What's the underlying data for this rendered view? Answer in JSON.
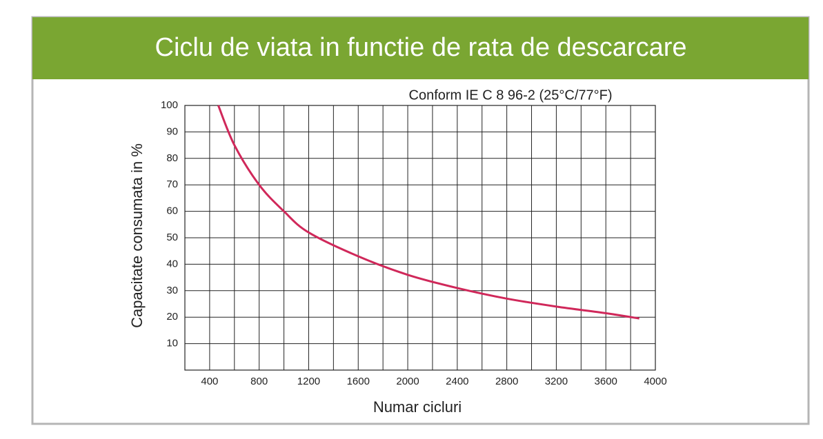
{
  "chart_data": {
    "type": "line",
    "title": "Ciclu de viata in functie de rata de descarcare",
    "subtitle": "Conform IE C 8 96-2 (25°C/77°F)",
    "x_label": "Numar cicluri",
    "y_label": "Capacitate consumata in %",
    "x": [
      470,
      600,
      800,
      1000,
      1200,
      1600,
      2000,
      2400,
      2800,
      3200,
      3600,
      3870
    ],
    "series": [
      {
        "color": "#d0285a",
        "values": [
          100,
          85,
          70,
          60,
          52,
          43,
          36,
          31,
          27,
          24,
          21.5,
          19.5
        ]
      }
    ],
    "xlim": [
      200,
      4000
    ],
    "xticks": [
      400,
      800,
      1200,
      1600,
      2000,
      2400,
      2800,
      3200,
      3600,
      4000
    ],
    "ylim": [
      0,
      100
    ],
    "yticks": [
      10,
      20,
      30,
      40,
      50,
      60,
      70,
      80,
      90,
      100
    ],
    "grid": true
  }
}
